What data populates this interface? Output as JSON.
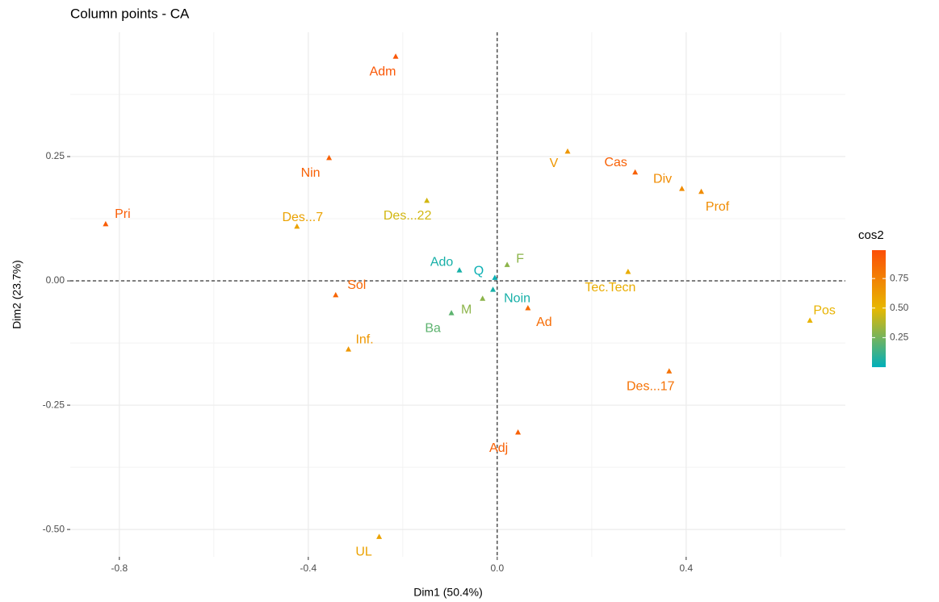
{
  "chart_data": {
    "type": "scatter",
    "title": "Column points - CA",
    "x_label": "Dim1 (50.4%)",
    "y_label": "Dim2 (23.7%)",
    "xlim": [
      -0.904,
      0.737
    ],
    "ylim": [
      -0.555,
      0.5
    ],
    "xticks": [
      -0.8,
      -0.4,
      {
        "value": 0,
        "label": "0.0"
      },
      0.4
    ],
    "yticks": [
      0.25,
      {
        "value": 0,
        "label": "0.00"
      },
      -0.25,
      {
        "value": -0.5,
        "label": "-0.50"
      }
    ],
    "grid": true,
    "labels": [
      "Adm",
      "Nin",
      "Pri",
      "Des...7",
      "Des...22",
      "V",
      "Cas",
      "Div",
      "Prof",
      "Ado",
      "Q",
      "F",
      "Noin",
      "M",
      "Ba",
      "Ad",
      "Sol",
      "Tec.Tecn",
      "Pos",
      "Inf.",
      "Des...17",
      "Adj",
      "UL"
    ],
    "x": [
      -0.215,
      -0.356,
      -0.829,
      -0.424,
      -0.149,
      0.149,
      0.292,
      0.391,
      0.432,
      -0.08,
      -0.005,
      0.021,
      -0.009,
      -0.031,
      -0.097,
      0.065,
      -0.342,
      0.277,
      0.662,
      -0.315,
      0.364,
      0.044,
      -0.25
    ],
    "y": [
      0.451,
      0.247,
      0.114,
      0.109,
      0.161,
      0.26,
      0.218,
      0.185,
      0.179,
      0.021,
      0.006,
      0.032,
      -0.018,
      -0.036,
      -0.065,
      -0.055,
      -0.029,
      0.018,
      -0.08,
      -0.138,
      -0.182,
      -0.305,
      -0.515
    ],
    "cos2": [
      0.95,
      0.9,
      0.92,
      0.6,
      0.45,
      0.65,
      0.9,
      0.7,
      0.7,
      0.05,
      0.02,
      0.3,
      0.05,
      0.3,
      0.2,
      0.85,
      0.88,
      0.55,
      0.52,
      0.65,
      0.82,
      0.9,
      0.6
    ],
    "color_scale": {
      "title": "cos2",
      "colors": [
        "#00AFBB",
        "#E7B800",
        "#FC4E07"
      ],
      "lim": [
        0.0,
        0.99
      ],
      "ticks": [
        0.25,
        {
          "value": 0.5,
          "label": "0.50"
        },
        0.75
      ]
    }
  }
}
